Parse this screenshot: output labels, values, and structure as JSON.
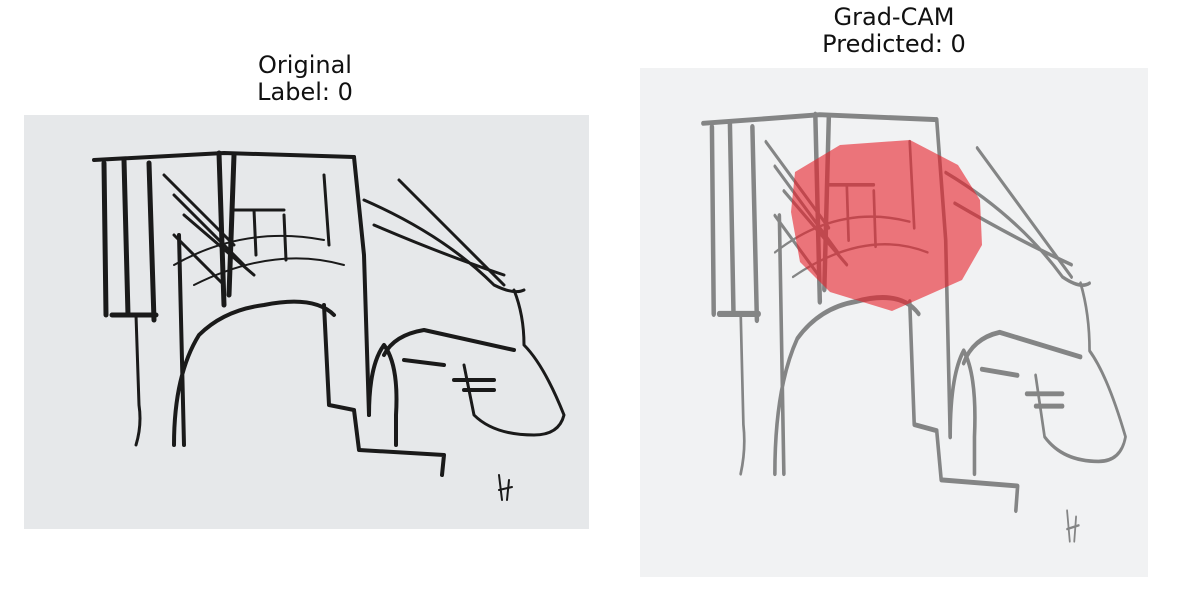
{
  "panels": [
    {
      "title": "Original",
      "subtitle": "Label: 0"
    },
    {
      "title": "Grad-CAM",
      "subtitle": "Predicted: 0"
    }
  ]
}
